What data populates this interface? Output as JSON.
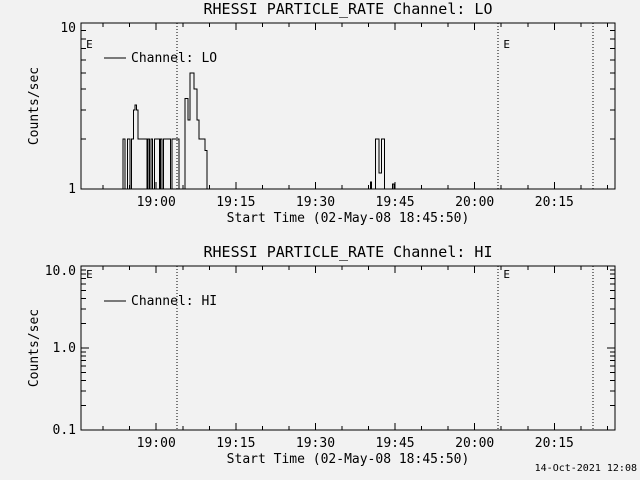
{
  "window": {
    "background": "#f2f2f2",
    "foreground": "#000000"
  },
  "footer": {
    "timestamp": "14-Oct-2021 12:08"
  },
  "chart_data": [
    {
      "type": "line",
      "title": "RHESSI PARTICLE_RATE Channel: LO",
      "xlabel": "Start Time (02-May-08 18:45:50)",
      "ylabel": "Counts/sec",
      "legend_label": "Channel: LO",
      "yscale": "log",
      "ylim": [
        1,
        10
      ],
      "ytick_values": [
        1,
        10
      ],
      "ytick_labels": [
        "1",
        "10"
      ],
      "xlim_minutes": [
        0,
        100.6
      ],
      "xticks": [
        {
          "label": "19:00",
          "minute": 14.17
        },
        {
          "label": "19:15",
          "minute": 29.17
        },
        {
          "label": "19:30",
          "minute": 44.17
        },
        {
          "label": "19:45",
          "minute": 59.17
        },
        {
          "label": "20:00",
          "minute": 74.17
        },
        {
          "label": "20:15",
          "minute": 89.17
        }
      ],
      "eclipse_lines_minutes": [
        18.1,
        78.6,
        96.5
      ],
      "eclipse_markers": {
        "label": "E",
        "minutes": [
          0.6,
          79.2
        ]
      },
      "series": [
        {
          "name": "Channel: LO",
          "mode": "step",
          "points_minute_value": [
            [
              0,
              1
            ],
            [
              7.9,
              2
            ],
            [
              8.3,
              1
            ],
            [
              8.8,
              2
            ],
            [
              9.2,
              1
            ],
            [
              9.5,
              2
            ],
            [
              9.9,
              3
            ],
            [
              10.2,
              3.2
            ],
            [
              10.45,
              3
            ],
            [
              10.7,
              2
            ],
            [
              12.4,
              1
            ],
            [
              12.65,
              2
            ],
            [
              12.9,
              1
            ],
            [
              13.2,
              2
            ],
            [
              13.5,
              1
            ],
            [
              13.8,
              2
            ],
            [
              14.75,
              1
            ],
            [
              15.0,
              2
            ],
            [
              15.3,
              1
            ],
            [
              15.55,
              2
            ],
            [
              16.9,
              1
            ],
            [
              17.15,
              2
            ],
            [
              18.5,
              1
            ],
            [
              19.6,
              3.5
            ],
            [
              20.2,
              2.6
            ],
            [
              20.5,
              5
            ],
            [
              21.3,
              4
            ],
            [
              21.9,
              2.6
            ],
            [
              22.2,
              2
            ],
            [
              23.4,
              1.7
            ],
            [
              23.7,
              1
            ],
            [
              54.5,
              1.1
            ],
            [
              54.75,
              1
            ],
            [
              55.5,
              2
            ],
            [
              56.1,
              1.25
            ],
            [
              56.65,
              2
            ],
            [
              57.2,
              1
            ],
            [
              58.7,
              1.07
            ],
            [
              58.95,
              1
            ],
            [
              100.6,
              1
            ]
          ]
        }
      ]
    },
    {
      "type": "line",
      "title": "RHESSI PARTICLE_RATE Channel: HI",
      "xlabel": "Start Time (02-May-08 18:45:50)",
      "ylabel": "Counts/sec",
      "legend_label": "Channel: HI",
      "yscale": "log",
      "ylim": [
        0.1,
        10
      ],
      "ytick_values": [
        0.1,
        1,
        10
      ],
      "ytick_labels": [
        "0.1",
        "1.0",
        "10.0"
      ],
      "xlim_minutes": [
        0,
        100.6
      ],
      "xticks": [
        {
          "label": "19:00",
          "minute": 14.17
        },
        {
          "label": "19:15",
          "minute": 29.17
        },
        {
          "label": "19:30",
          "minute": 44.17
        },
        {
          "label": "19:45",
          "minute": 59.17
        },
        {
          "label": "20:00",
          "minute": 74.17
        },
        {
          "label": "20:15",
          "minute": 89.17
        }
      ],
      "eclipse_lines_minutes": [
        18.1,
        78.6,
        96.5
      ],
      "eclipse_markers": {
        "label": "E",
        "minutes": [
          0.6,
          79.2
        ]
      },
      "series": [
        {
          "name": "Channel: HI",
          "mode": "step",
          "points_minute_value": []
        }
      ]
    }
  ]
}
